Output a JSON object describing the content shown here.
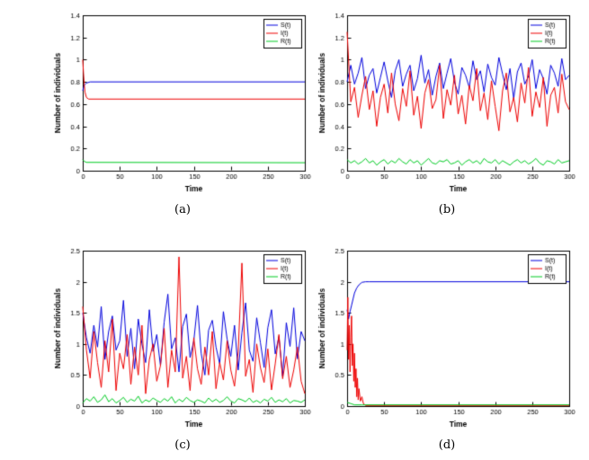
{
  "figure": {
    "background": "#ffffff",
    "axis_color": "#000000",
    "series_colors": {
      "S": "#0000dd",
      "I": "#ee0000",
      "R": "#00cc22"
    }
  },
  "chart_data": [
    {
      "caption": "(a)",
      "type": "line",
      "xlabel": "Time",
      "ylabel": "Number of individuals",
      "xlim": [
        0,
        300
      ],
      "ylim": [
        0,
        1.4
      ],
      "xticks": [
        0,
        50,
        100,
        150,
        200,
        250,
        300
      ],
      "yticks": [
        0,
        0.2,
        0.4,
        0.6,
        0.8,
        1,
        1.2,
        1.4
      ],
      "legend": [
        "S(t)",
        "I(t)",
        "R(t)"
      ],
      "legend_position": "top-right",
      "grid": false,
      "series": [
        {
          "name": "S(t)",
          "color": "#0000dd",
          "x": [
            0,
            2,
            5,
            10,
            300
          ],
          "y": [
            0.72,
            0.77,
            0.79,
            0.8,
            0.8
          ]
        },
        {
          "name": "I(t)",
          "color": "#ee0000",
          "x": [
            0,
            1,
            2,
            3,
            5,
            8,
            300
          ],
          "y": [
            1.0,
            0.88,
            0.78,
            0.71,
            0.66,
            0.645,
            0.645
          ]
        },
        {
          "name": "R(t)",
          "color": "#00cc22",
          "x": [
            0,
            2,
            5,
            300
          ],
          "y": [
            0.1,
            0.085,
            0.075,
            0.072
          ]
        }
      ]
    },
    {
      "caption": "(b)",
      "type": "line",
      "xlabel": "Time",
      "ylabel": "Number of individuals",
      "xlim": [
        0,
        300
      ],
      "ylim": [
        0,
        1.4
      ],
      "xticks": [
        0,
        50,
        100,
        150,
        200,
        250,
        300
      ],
      "yticks": [
        0,
        0.2,
        0.4,
        0.6,
        0.8,
        1,
        1.2,
        1.4
      ],
      "legend": [
        "S(t)",
        "I(t)",
        "R(t)"
      ],
      "legend_position": "top-right",
      "grid": false,
      "series": [
        {
          "name": "S(t)",
          "color": "#0000dd",
          "x_step": 5,
          "y": [
            0.8,
            0.95,
            0.78,
            0.88,
            1.02,
            0.74,
            0.86,
            0.92,
            0.7,
            0.84,
            0.98,
            0.81,
            0.66,
            0.9,
            1.0,
            0.76,
            0.87,
            0.95,
            0.72,
            0.83,
            1.04,
            0.79,
            0.91,
            0.68,
            0.85,
            0.97,
            0.74,
            0.88,
            1.01,
            0.8,
            0.69,
            0.93,
            0.86,
            0.75,
            0.99,
            0.82,
            0.9,
            0.71,
            0.96,
            0.84,
            0.77,
            1.02,
            0.87,
            0.73,
            0.92,
            0.65,
            0.89,
            0.97,
            0.78,
            0.85,
            1.0,
            0.74,
            0.91,
            0.83,
            0.69,
            0.95,
            0.88,
            0.76,
            1.01,
            0.82,
            0.86
          ]
        },
        {
          "name": "I(t)",
          "color": "#ee0000",
          "x_step": 5,
          "y": [
            1.25,
            0.62,
            0.75,
            0.48,
            0.68,
            0.85,
            0.55,
            0.72,
            0.4,
            0.66,
            0.78,
            0.52,
            0.88,
            0.6,
            0.45,
            0.74,
            0.58,
            0.9,
            0.5,
            0.67,
            0.38,
            0.7,
            0.82,
            0.56,
            0.64,
            0.95,
            0.47,
            0.73,
            0.59,
            0.86,
            0.51,
            0.68,
            0.42,
            0.77,
            0.63,
            0.92,
            0.54,
            0.7,
            0.46,
            0.81,
            0.58,
            0.36,
            0.72,
            0.88,
            0.53,
            0.66,
            0.44,
            0.79,
            0.61,
            0.93,
            0.49,
            0.71,
            0.57,
            0.84,
            0.4,
            0.68,
            0.75,
            0.52,
            0.87,
            0.62,
            0.55
          ]
        },
        {
          "name": "R(t)",
          "color": "#00cc22",
          "x_step": 5,
          "y": [
            0.1,
            0.07,
            0.09,
            0.06,
            0.08,
            0.11,
            0.07,
            0.09,
            0.05,
            0.08,
            0.1,
            0.06,
            0.09,
            0.07,
            0.11,
            0.08,
            0.06,
            0.1,
            0.07,
            0.09,
            0.05,
            0.08,
            0.11,
            0.07,
            0.06,
            0.09,
            0.08,
            0.1,
            0.06,
            0.07,
            0.09,
            0.05,
            0.08,
            0.1,
            0.07,
            0.09,
            0.06,
            0.11,
            0.08,
            0.07,
            0.1,
            0.06,
            0.09,
            0.07,
            0.05,
            0.08,
            0.1,
            0.07,
            0.09,
            0.06,
            0.08,
            0.11,
            0.07,
            0.05,
            0.09,
            0.08,
            0.06,
            0.1,
            0.07,
            0.08,
            0.09
          ]
        }
      ]
    },
    {
      "caption": "(c)",
      "type": "line",
      "xlabel": "Time",
      "ylabel": "Number of individuals",
      "xlim": [
        0,
        300
      ],
      "ylim": [
        0,
        2.5
      ],
      "xticks": [
        0,
        50,
        100,
        150,
        200,
        250,
        300
      ],
      "yticks": [
        0,
        0.5,
        1,
        1.5,
        2,
        2.5
      ],
      "legend": [
        "S(t)",
        "I(t)",
        "R(t)"
      ],
      "legend_position": "top-right",
      "grid": false,
      "series": [
        {
          "name": "S(t)",
          "color": "#0000dd",
          "x_step": 5,
          "y": [
            1.5,
            1.1,
            0.85,
            1.3,
            0.95,
            1.6,
            0.75,
            1.2,
            1.45,
            0.9,
            1.05,
            1.7,
            0.8,
            1.25,
            0.6,
            1.4,
            1.0,
            0.7,
            1.55,
            0.88,
            1.15,
            0.65,
            1.35,
            1.8,
            0.92,
            1.1,
            0.55,
            1.28,
            1.48,
            0.78,
            1.05,
            1.62,
            0.85,
            0.5,
            1.22,
            1.38,
            0.95,
            0.68,
            1.52,
            1.08,
            0.8,
            1.3,
            0.58,
            1.18,
            1.66,
            0.9,
            0.72,
            1.42,
            1.02,
            0.62,
            1.26,
            1.55,
            0.84,
            1.12,
            0.48,
            1.34,
            0.96,
            1.58,
            0.76,
            1.2,
            1.05
          ]
        },
        {
          "name": "I(t)",
          "color": "#ee0000",
          "x_step": 5,
          "y": [
            1.6,
            0.9,
            0.45,
            1.2,
            0.7,
            0.3,
            1.05,
            0.55,
            1.4,
            0.25,
            0.85,
            0.6,
            1.15,
            0.35,
            0.95,
            0.5,
            1.3,
            0.2,
            0.75,
            1.0,
            0.4,
            0.65,
            1.25,
            0.3,
            0.9,
            0.55,
            2.4,
            0.45,
            0.8,
            0.25,
            1.1,
            0.6,
            0.35,
            0.95,
            0.5,
            1.2,
            0.28,
            0.7,
            0.42,
            1.05,
            0.58,
            0.32,
            0.88,
            2.3,
            0.48,
            0.75,
            0.22,
            1.0,
            0.62,
            0.38,
            0.92,
            0.26,
            0.68,
            1.15,
            0.44,
            0.8,
            0.3,
            0.58,
            0.95,
            0.4,
            0.2
          ]
        },
        {
          "name": "R(t)",
          "color": "#00cc22",
          "x_step": 5,
          "y": [
            0.05,
            0.12,
            0.08,
            0.15,
            0.06,
            0.1,
            0.18,
            0.07,
            0.12,
            0.05,
            0.09,
            0.14,
            0.06,
            0.11,
            0.08,
            0.16,
            0.05,
            0.1,
            0.07,
            0.13,
            0.09,
            0.06,
            0.12,
            0.08,
            0.15,
            0.05,
            0.11,
            0.07,
            0.14,
            0.09,
            0.06,
            0.1,
            0.08,
            0.05,
            0.13,
            0.07,
            0.11,
            0.06,
            0.09,
            0.15,
            0.08,
            0.05,
            0.12,
            0.1,
            0.07,
            0.13,
            0.06,
            0.09,
            0.05,
            0.11,
            0.08,
            0.14,
            0.06,
            0.1,
            0.07,
            0.12,
            0.05,
            0.09,
            0.08,
            0.06,
            0.1
          ]
        }
      ]
    },
    {
      "caption": "(d)",
      "type": "line",
      "xlabel": "Time",
      "ylabel": "Number of individuals",
      "xlim": [
        0,
        300
      ],
      "ylim": [
        0,
        2.5
      ],
      "xticks": [
        0,
        50,
        100,
        150,
        200,
        250,
        300
      ],
      "yticks": [
        0,
        0.5,
        1,
        1.5,
        2,
        2.5
      ],
      "legend": [
        "S(t)",
        "I(t)",
        "R(t)"
      ],
      "legend_position": "top-right",
      "grid": false,
      "series": [
        {
          "name": "S(t)",
          "color": "#0000dd",
          "x": [
            0,
            2,
            4,
            6,
            8,
            10,
            13,
            16,
            20,
            25,
            30,
            300
          ],
          "y": [
            1.55,
            1.4,
            1.52,
            1.62,
            1.72,
            1.82,
            1.9,
            1.95,
            1.99,
            2.0,
            2.0,
            2.0
          ]
        },
        {
          "name": "I(t)",
          "color": "#ee0000",
          "x": [
            0,
            1,
            2,
            3,
            4,
            5,
            6,
            7,
            8,
            9,
            10,
            11,
            12,
            13,
            14,
            15,
            16,
            18,
            20,
            22,
            25,
            300
          ],
          "y": [
            0.9,
            1.75,
            0.75,
            1.3,
            0.55,
            1.1,
            1.45,
            0.65,
            1.0,
            0.4,
            0.85,
            0.3,
            0.6,
            0.15,
            0.45,
            0.1,
            0.28,
            0.08,
            0.15,
            0.04,
            0.01,
            0.01
          ]
        },
        {
          "name": "R(t)",
          "color": "#00cc22",
          "x": [
            0,
            5,
            10,
            20,
            300
          ],
          "y": [
            0.06,
            0.04,
            0.02,
            0.02,
            0.02
          ]
        }
      ]
    }
  ]
}
